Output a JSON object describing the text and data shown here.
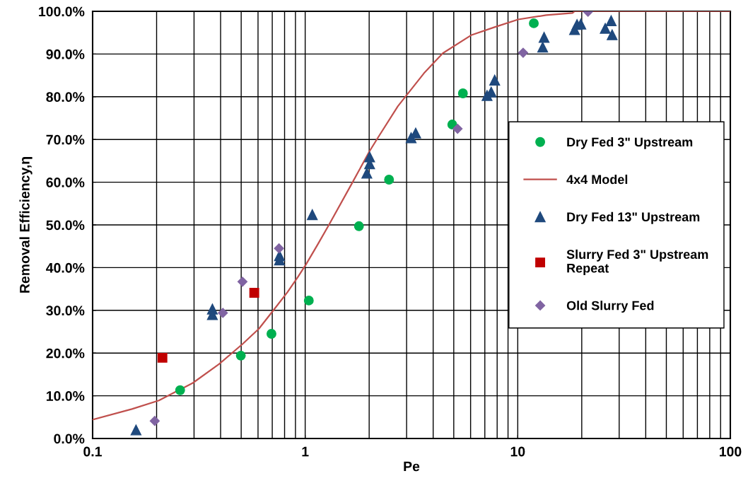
{
  "chart_data": {
    "type": "scatter",
    "xlabel": "Pe",
    "ylabel": "Removal Efficiency,η",
    "log": "x",
    "grid": true,
    "legend": "right",
    "xlim": [
      0.1,
      100
    ],
    "xticks": [
      {
        "value": 0.1,
        "label": "0.1"
      },
      {
        "value": 1,
        "label": "1"
      },
      {
        "value": 10,
        "label": "10"
      },
      {
        "value": 100,
        "label": "100"
      }
    ],
    "ylim": [
      0,
      100
    ],
    "yticks": [
      {
        "value": 0,
        "label": "0.0%"
      },
      {
        "value": 10,
        "label": "10.0%"
      },
      {
        "value": 20,
        "label": "20.0%"
      },
      {
        "value": 30,
        "label": "30.0%"
      },
      {
        "value": 40,
        "label": "40.0%"
      },
      {
        "value": 50,
        "label": "50.0%"
      },
      {
        "value": 60,
        "label": "60.0%"
      },
      {
        "value": 70,
        "label": "70.0%"
      },
      {
        "value": 80,
        "label": "80.0%"
      },
      {
        "value": 90,
        "label": "90.0%"
      },
      {
        "value": 100,
        "label": "100.0%"
      }
    ],
    "series": [
      {
        "name": "Dry Fed 3\" Upstream",
        "marker": "circle",
        "color": "#00b050",
        "x": [
          0.258,
          0.498,
          0.694,
          1.04,
          1.79,
          2.48,
          4.92,
          5.52,
          11.9
        ],
        "values": [
          11.3,
          19.4,
          24.5,
          32.3,
          49.7,
          60.6,
          73.5,
          80.8,
          97.2
        ]
      },
      {
        "name": "4x4 Model",
        "type": "line",
        "marker": "none",
        "line_style": "solid",
        "color": "#c0504d",
        "x": [
          0.1,
          0.153,
          0.205,
          0.296,
          0.393,
          0.507,
          0.606,
          0.716,
          0.824,
          0.924,
          1.01,
          1.148,
          1.3,
          1.68,
          2.01,
          2.23,
          2.73,
          3.62,
          4.44,
          6.03,
          7.78,
          10.05,
          13.6,
          18.1,
          18.5,
          100
        ],
        "values": [
          4.4,
          6.9,
          8.9,
          13.0,
          17.4,
          22.1,
          25.7,
          30.3,
          34.2,
          37.8,
          40.8,
          45.5,
          50.2,
          60.2,
          67.3,
          70.9,
          77.8,
          85.5,
          90.2,
          94.4,
          96.3,
          98.1,
          99.1,
          99.6,
          100,
          100
        ]
      },
      {
        "name": "Dry Fed 13\" Upstream",
        "marker": "triangle",
        "color": "#1f497d",
        "x": [
          0.16,
          0.366,
          0.366,
          0.757,
          0.757,
          1.08,
          1.95,
          2.01,
          2.01,
          3.15,
          3.31,
          7.17,
          7.5,
          7.79,
          13.1,
          13.3,
          18.5,
          19.0,
          19.8,
          25.8,
          27.5,
          27.8
        ],
        "values": [
          2.0,
          30.3,
          29.0,
          42.8,
          41.8,
          52.4,
          62.1,
          64.3,
          65.9,
          70.4,
          71.5,
          80.3,
          81.1,
          83.9,
          91.6,
          93.9,
          95.7,
          96.9,
          97.0,
          96.0,
          97.8,
          94.5
        ]
      },
      {
        "name": "Slurry Fed 3\" Upstream\nRepeat",
        "marker": "square",
        "color": "#c00000",
        "x": [
          0.213,
          0.576
        ],
        "values": [
          18.9,
          34.1
        ]
      },
      {
        "name": "Old Slurry Fed",
        "marker": "diamond",
        "color": "#8064a2",
        "x": [
          0.196,
          0.41,
          0.507,
          0.753,
          5.21,
          10.6,
          21.4
        ],
        "values": [
          4.1,
          29.4,
          36.7,
          44.5,
          72.5,
          90.3,
          99.9
        ]
      }
    ]
  }
}
